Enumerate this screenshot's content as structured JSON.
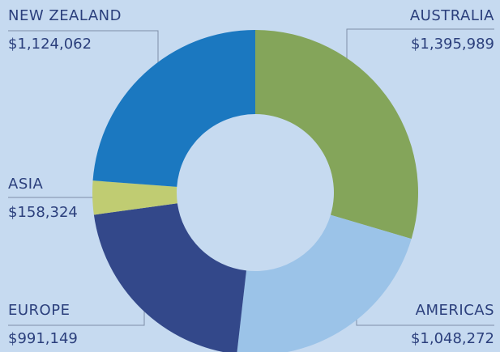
{
  "chart_data": {
    "type": "donut",
    "categories": [
      "AUSTRALIA",
      "AMERICAS",
      "EUROPE",
      "ASIA",
      "NEW ZEALAND"
    ],
    "values": [
      1395989,
      1048272,
      991149,
      158324,
      1124062
    ],
    "value_labels": [
      "$1,395,989",
      "$1,048,272",
      "$991,149",
      "$158,324",
      "$1,124,062"
    ],
    "colors": [
      "#84a55a",
      "#9bc3e8",
      "#33488a",
      "#c0cc72",
      "#1b78c0"
    ]
  }
}
